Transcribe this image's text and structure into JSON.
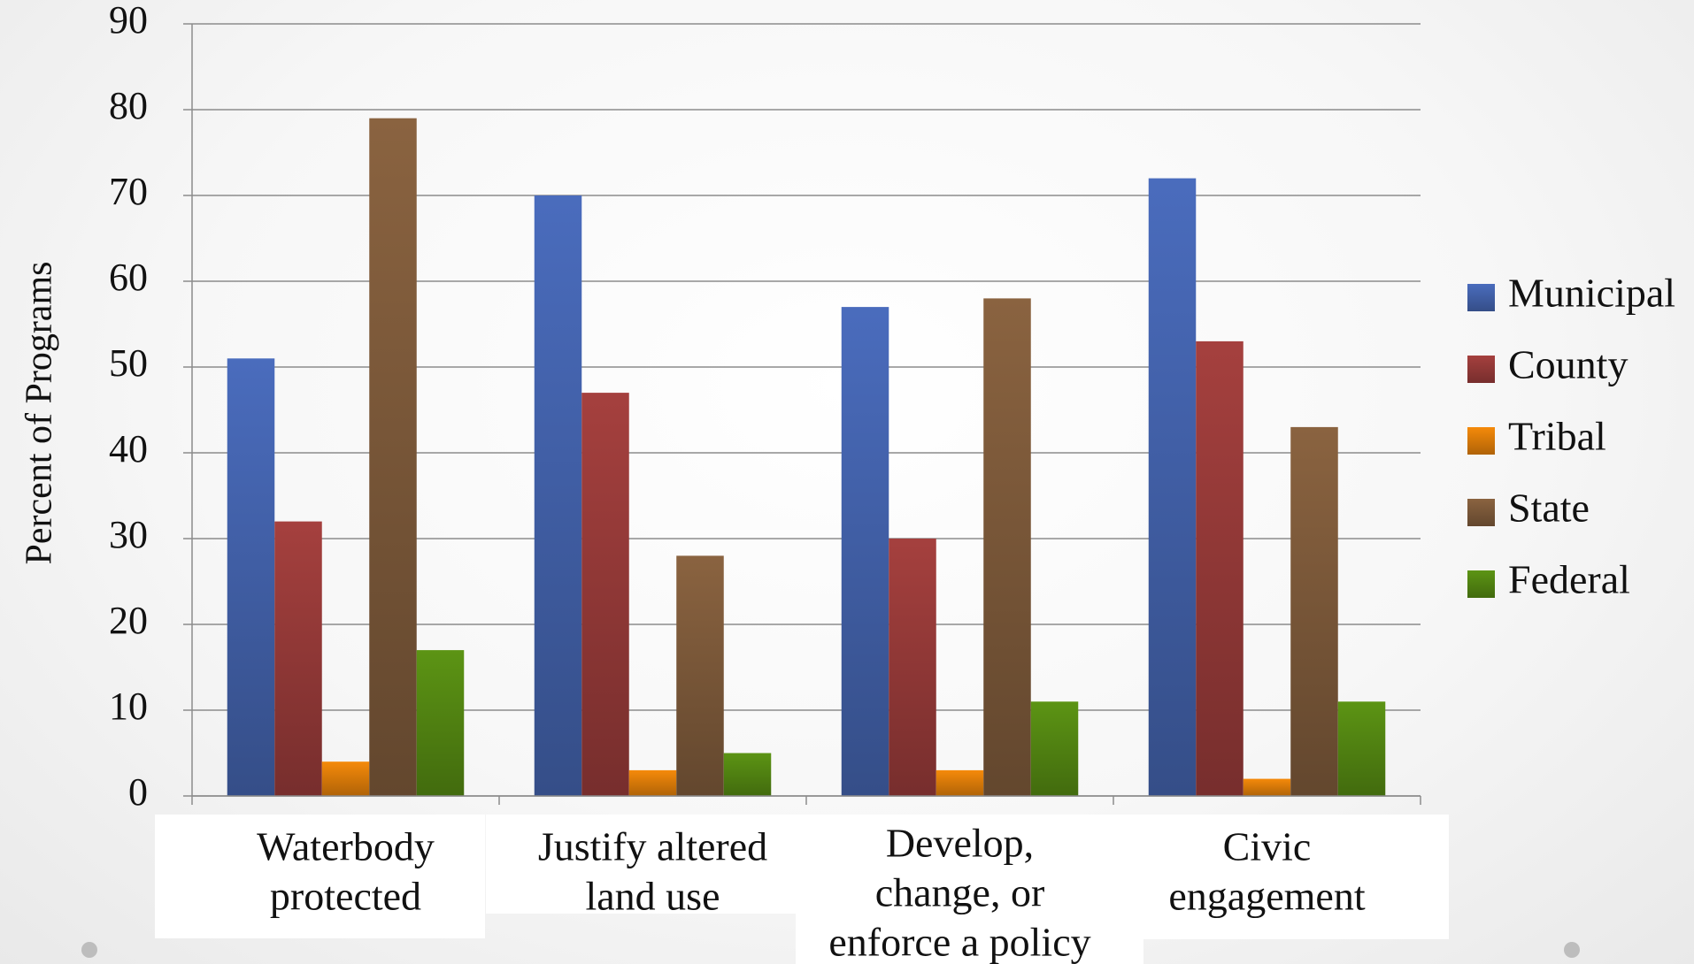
{
  "chart_data": {
    "type": "bar",
    "title": "",
    "xlabel": "",
    "ylabel": "Percent of Programs",
    "ylim": [
      0,
      90
    ],
    "yticks": [
      0,
      10,
      20,
      30,
      40,
      50,
      60,
      70,
      80,
      90
    ],
    "grid": true,
    "legend_position": "right",
    "categories": [
      [
        "Waterbody",
        "protected"
      ],
      [
        "Justify altered",
        "land use"
      ],
      [
        "Develop,",
        "change, or",
        "enforce a policy"
      ],
      [
        "Civic",
        "engagement"
      ]
    ],
    "series": [
      {
        "name": "Municipal",
        "color": "#4a6cbd",
        "values": [
          51,
          70,
          57,
          72
        ]
      },
      {
        "name": "County",
        "color": "#a5403e",
        "values": [
          32,
          47,
          30,
          53
        ]
      },
      {
        "name": "Tribal",
        "color": "#f58a0a",
        "values": [
          4,
          3,
          3,
          2
        ]
      },
      {
        "name": "State",
        "color": "#8a6340",
        "values": [
          79,
          28,
          58,
          43
        ]
      },
      {
        "name": "Federal",
        "color": "#5c9414",
        "values": [
          17,
          5,
          11,
          11
        ]
      }
    ]
  },
  "slide": {
    "bullet_left": "•",
    "bullet_right": "•"
  }
}
